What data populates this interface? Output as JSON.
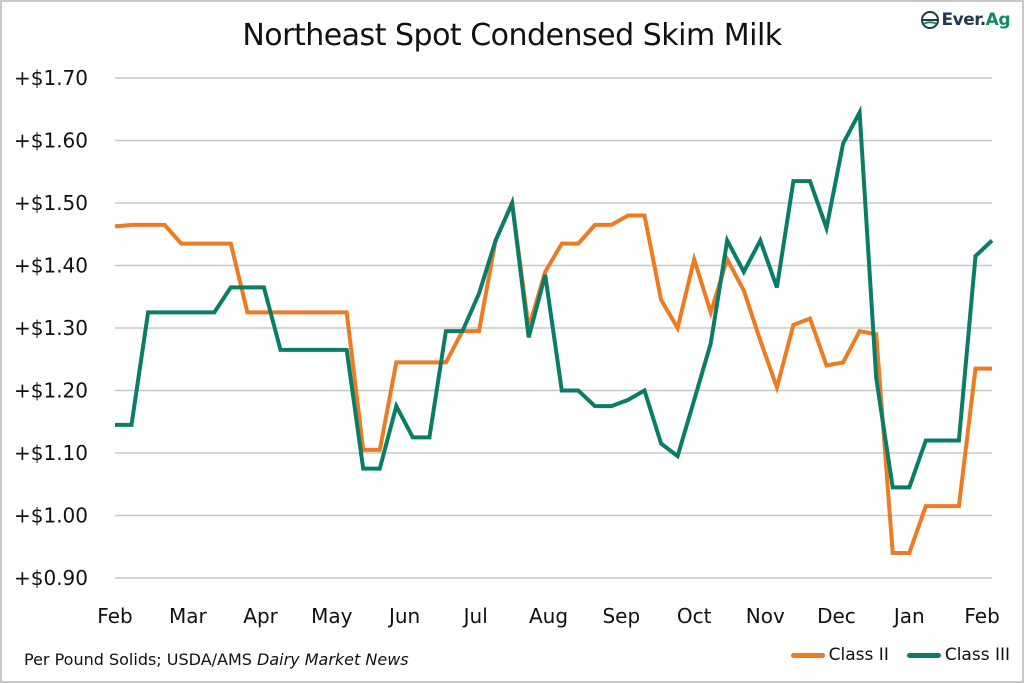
{
  "logo": {
    "text_main": "Ever.",
    "text_accent": "Ag",
    "icon": "ever-ag-logo-icon"
  },
  "source_note": {
    "text": "Per Pound Solids; USDA/AMS ",
    "italic": "Dairy Market News"
  },
  "colors": {
    "class_ii": "#ee7b22",
    "class_iii": "#0a7d67",
    "grid": "#c8c8c8"
  },
  "chart_data": {
    "type": "line",
    "title": "Northeast Spot Condensed Skim Milk",
    "xlabel": "",
    "ylabel": "",
    "ylim": [
      0.9,
      1.7
    ],
    "yticks": [
      1.7,
      1.6,
      1.5,
      1.4,
      1.3,
      1.2,
      1.1,
      1.0,
      0.9
    ],
    "ytick_labels": [
      "+$1.70",
      "+$1.60",
      "+$1.50",
      "+$1.40",
      "+$1.30",
      "+$1.20",
      "+$1.10",
      "+$1.00",
      "+$0.90"
    ],
    "xtick_labels": [
      "Feb",
      "Mar",
      "Apr",
      "May",
      "Jun",
      "Jul",
      "Aug",
      "Sep",
      "Oct",
      "Nov",
      "Dec",
      "Jan",
      "Feb"
    ],
    "xtick_positions_week": [
      0,
      4.4,
      8.8,
      13.1,
      17.5,
      21.8,
      26.2,
      30.6,
      35,
      39.3,
      43.6,
      48,
      52.4
    ],
    "grid": true,
    "legend_position": "bottom-right",
    "x_unit": "week",
    "series": [
      {
        "name": "Class II",
        "color": "#ee7b22",
        "values": [
          1.4625,
          1.465,
          1.465,
          1.465,
          1.435,
          1.435,
          1.435,
          1.435,
          1.325,
          1.325,
          1.325,
          1.325,
          1.325,
          1.325,
          1.325,
          1.105,
          1.105,
          1.245,
          1.245,
          1.245,
          1.245,
          1.295,
          1.295,
          1.44,
          1.5,
          1.3,
          1.39,
          1.435,
          1.435,
          1.465,
          1.465,
          1.48,
          1.48,
          1.345,
          1.3,
          1.41,
          1.325,
          1.41,
          1.36,
          1.28,
          1.205,
          1.305,
          1.315,
          1.24,
          1.245,
          1.295,
          1.29,
          0.94,
          0.94,
          1.015,
          1.015,
          1.015,
          1.235,
          1.235
        ]
      },
      {
        "name": "Class III",
        "color": "#0a7d67",
        "values": [
          1.145,
          1.145,
          1.325,
          1.325,
          1.325,
          1.325,
          1.325,
          1.365,
          1.365,
          1.365,
          1.265,
          1.265,
          1.265,
          1.265,
          1.265,
          1.075,
          1.075,
          1.175,
          1.125,
          1.125,
          1.295,
          1.295,
          1.355,
          1.44,
          1.5,
          1.285,
          1.385,
          1.2,
          1.2,
          1.175,
          1.175,
          1.185,
          1.2,
          1.115,
          1.095,
          1.185,
          1.275,
          1.44,
          1.39,
          1.44,
          1.365,
          1.535,
          1.535,
          1.46,
          1.595,
          1.645,
          1.22,
          1.045,
          1.045,
          1.12,
          1.12,
          1.12,
          1.415,
          1.44
        ]
      }
    ]
  }
}
